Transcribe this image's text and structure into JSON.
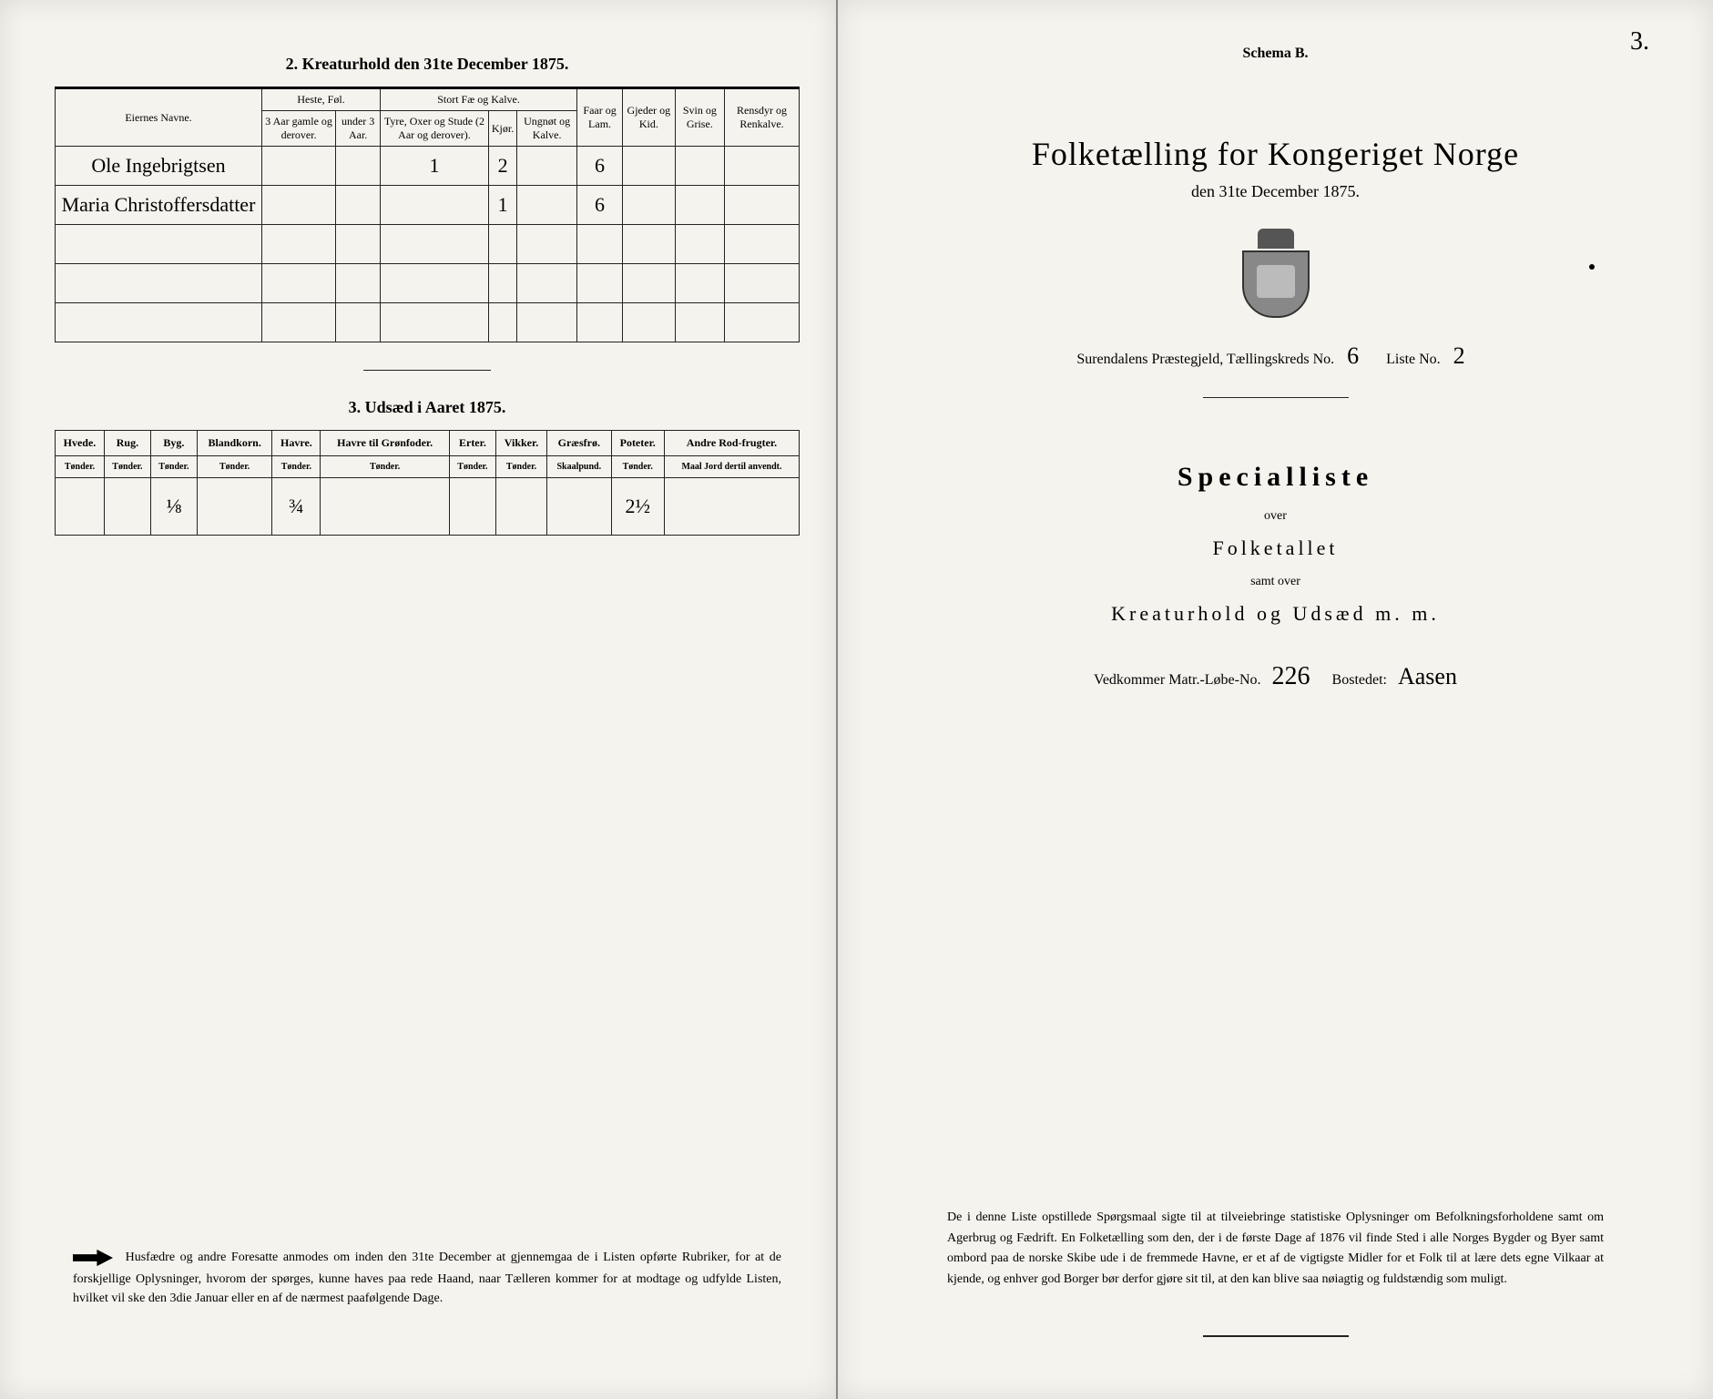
{
  "left": {
    "section2_title": "2.  Kreaturhold den 31te December 1875.",
    "livestock": {
      "col_name": "Eiernes Navne.",
      "group_heste": "Heste, Føl.",
      "group_stort": "Stort Fæ og Kalve.",
      "col_faar": "Faar og Lam.",
      "col_gjed": "Gjeder og Kid.",
      "col_svin": "Svin og Grise.",
      "col_rens": "Rensdyr og Renkalve.",
      "sub_h1": "3 Aar gamle og derover.",
      "sub_h2": "under 3 Aar.",
      "sub_s1": "Tyre, Oxer og Stude (2 Aar og derover).",
      "sub_s2": "Kjør.",
      "sub_s3": "Ungnøt og Kalve.",
      "rows": [
        {
          "name": "Ole Ingebrigtsen",
          "h1": "",
          "h2": "",
          "s1": "1",
          "s2": "2",
          "s3": "",
          "faar": "6",
          "gjed": "",
          "svin": "",
          "rens": ""
        },
        {
          "name": "Maria Christoffersdatter",
          "h1": "",
          "h2": "",
          "s1": "",
          "s2": "1",
          "s3": "",
          "faar": "6",
          "gjed": "",
          "svin": "",
          "rens": ""
        },
        {
          "name": "",
          "h1": "",
          "h2": "",
          "s1": "",
          "s2": "",
          "s3": "",
          "faar": "",
          "gjed": "",
          "svin": "",
          "rens": ""
        },
        {
          "name": "",
          "h1": "",
          "h2": "",
          "s1": "",
          "s2": "",
          "s3": "",
          "faar": "",
          "gjed": "",
          "svin": "",
          "rens": ""
        },
        {
          "name": "",
          "h1": "",
          "h2": "",
          "s1": "",
          "s2": "",
          "s3": "",
          "faar": "",
          "gjed": "",
          "svin": "",
          "rens": ""
        }
      ]
    },
    "section3_title": "3.  Udsæd i Aaret 1875.",
    "seed": {
      "cols": [
        "Hvede.",
        "Rug.",
        "Byg.",
        "Blandkorn.",
        "Havre.",
        "Havre til Grønfoder.",
        "Erter.",
        "Vikker.",
        "Græsfrø.",
        "Poteter.",
        "Andre Rod-frugter."
      ],
      "units": [
        "Tønder.",
        "Tønder.",
        "Tønder.",
        "Tønder.",
        "Tønder.",
        "Tønder.",
        "Tønder.",
        "Tønder.",
        "Skaalpund.",
        "Tønder.",
        "Maal Jord dertil anvendt."
      ],
      "vals": [
        "",
        "",
        "⅛",
        "",
        "¾",
        "",
        "",
        "",
        "",
        "2½",
        ""
      ]
    },
    "footer": "Husfædre og andre Foresatte anmodes om inden den 31te December at gjennemgaa de i Listen opførte Rubriker, for at de forskjellige Oplysninger, hvorom der spørges, kunne haves paa rede Haand, naar Tælleren kommer for at modtage og udfylde Listen, hvilket vil ske den 3die Januar eller en af de nærmest paafølgende Dage."
  },
  "right": {
    "page_number": "3.",
    "schema": "Schema B.",
    "title": "Folketælling for Kongeriget Norge",
    "date": "den 31te December 1875.",
    "parish_prefix": "Surendalens Præstegjeld,  Tællingskreds No.",
    "kreds_no": "6",
    "liste_label": "Liste No.",
    "liste_no": "2",
    "special": "Specialliste",
    "over": "over",
    "folketallet": "Folketallet",
    "samt": "samt over",
    "kreatur": "Kreaturhold og Udsæd m. m.",
    "matr_label": "Vedkommer Matr.-Løbe-No.",
    "matr_no": "226",
    "bostedet_label": "Bostedet:",
    "bostedet": "Aasen",
    "bottom": "De i denne Liste opstillede Spørgsmaal sigte til at tilveiebringe statistiske Oplysninger om Befolkningsforholdene samt om Agerbrug og Fædrift.  En Folketælling som den, der i de første Dage af 1876 vil finde Sted i alle Norges Bygder og Byer samt ombord paa de norske Skibe ude i de fremmede Havne, er et af de vigtigste Midler for et Folk til at lære dets egne Vilkaar at kjende, og enhver god Borger bør derfor gjøre sit til, at den kan blive saa nøiagtig og fuldstændig som muligt."
  },
  "colors": {
    "paper": "#f5f3ed",
    "ink": "#1a1a1a",
    "border": "#222222"
  }
}
